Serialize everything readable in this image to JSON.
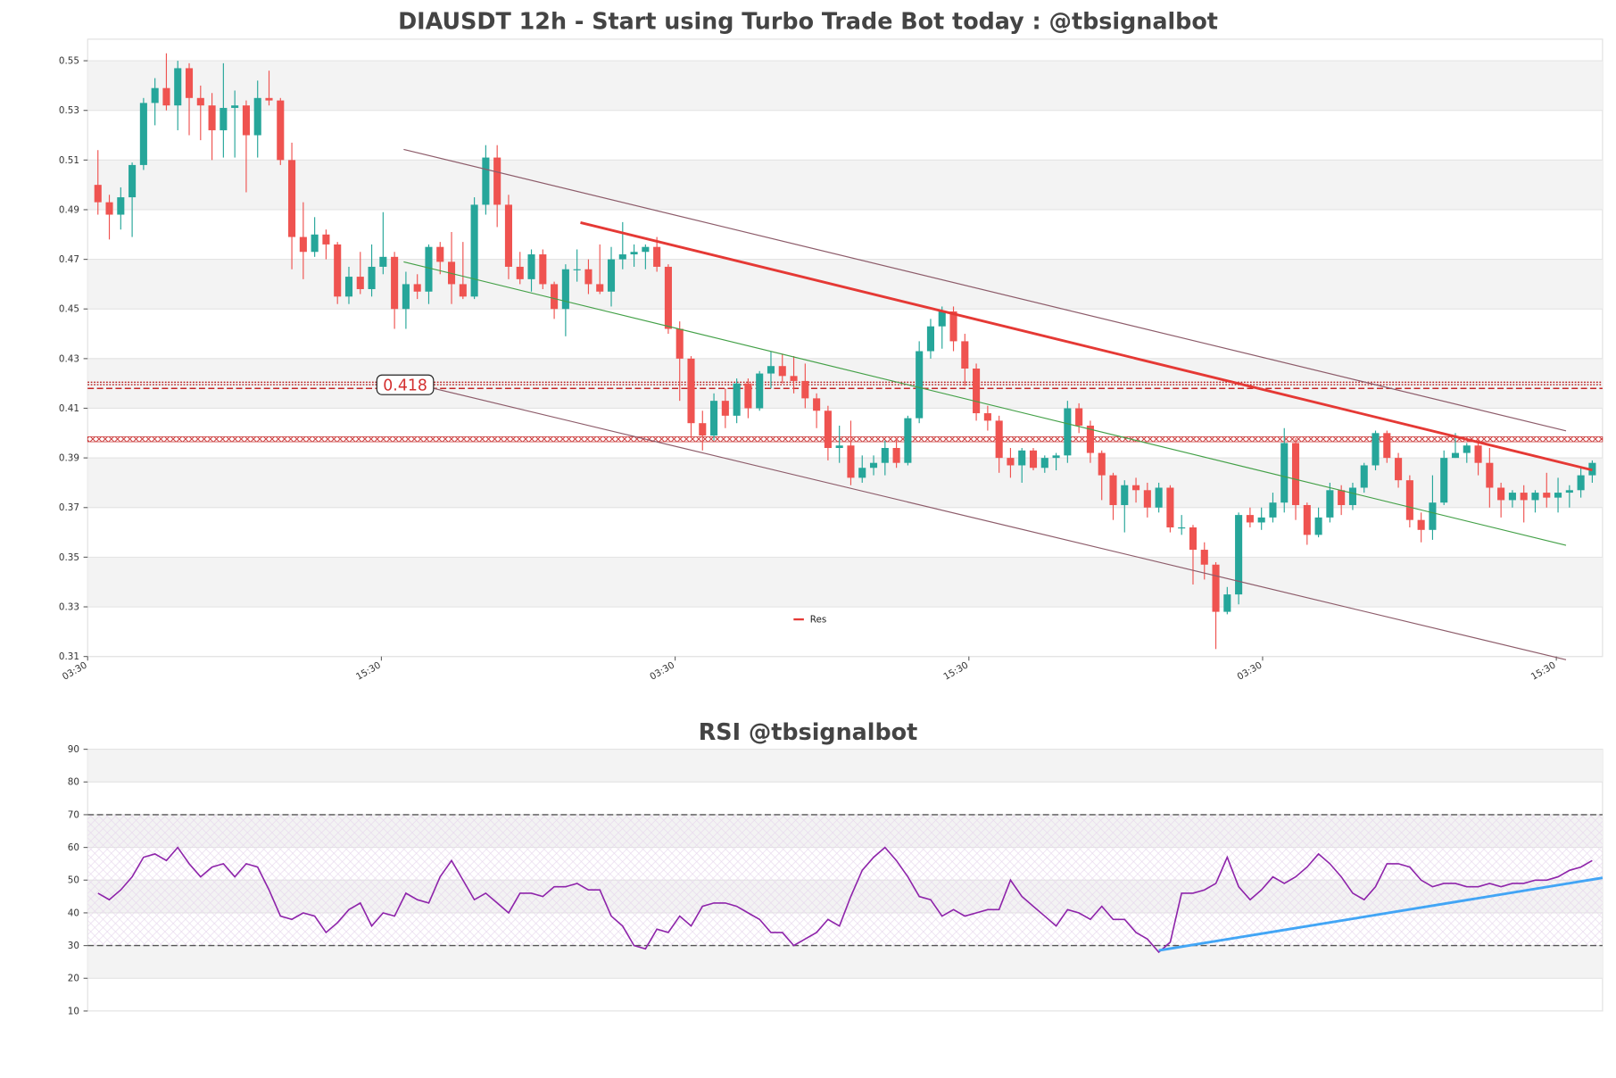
{
  "chart_data": [
    {
      "type": "candlestick",
      "title": "DIAUSDT 12h - Start using Turbo Trade Bot today : @tbsignalbot",
      "xlim": [
        -0.9,
        131.9
      ],
      "xticks": [
        {
          "value": -0.9,
          "label": "03:30"
        },
        {
          "value": 24.85,
          "label": "15:30"
        },
        {
          "value": 50.6,
          "label": "03:30"
        },
        {
          "value": 76.35,
          "label": "15:30"
        },
        {
          "value": 102.1,
          "label": "03:30"
        },
        {
          "value": 127.85,
          "label": "15:30"
        }
      ],
      "ylim": [
        0.31,
        0.5587
      ],
      "yticks": [
        0.31,
        0.33,
        0.35,
        0.37,
        0.39,
        0.41,
        0.43,
        0.45,
        0.47,
        0.49,
        0.51,
        0.53,
        0.55
      ],
      "grid": true,
      "up_color": "#26a69a",
      "down_color": "#ef5350",
      "ohlc": [
        [
          0.5,
          0.514,
          0.488,
          0.493
        ],
        [
          0.493,
          0.496,
          0.478,
          0.488
        ],
        [
          0.488,
          0.499,
          0.482,
          0.495
        ],
        [
          0.495,
          0.509,
          0.479,
          0.508
        ],
        [
          0.508,
          0.535,
          0.506,
          0.533
        ],
        [
          0.533,
          0.543,
          0.524,
          0.539
        ],
        [
          0.539,
          0.553,
          0.53,
          0.532
        ],
        [
          0.532,
          0.55,
          0.522,
          0.547
        ],
        [
          0.547,
          0.549,
          0.52,
          0.535
        ],
        [
          0.535,
          0.54,
          0.518,
          0.532
        ],
        [
          0.532,
          0.537,
          0.51,
          0.522
        ],
        [
          0.522,
          0.549,
          0.511,
          0.531
        ],
        [
          0.531,
          0.538,
          0.511,
          0.532
        ],
        [
          0.532,
          0.534,
          0.497,
          0.52
        ],
        [
          0.52,
          0.542,
          0.511,
          0.535
        ],
        [
          0.535,
          0.546,
          0.532,
          0.534
        ],
        [
          0.534,
          0.535,
          0.508,
          0.51
        ],
        [
          0.51,
          0.517,
          0.466,
          0.479
        ],
        [
          0.479,
          0.493,
          0.462,
          0.473
        ],
        [
          0.473,
          0.487,
          0.471,
          0.48
        ],
        [
          0.48,
          0.482,
          0.47,
          0.476
        ],
        [
          0.476,
          0.477,
          0.452,
          0.455
        ],
        [
          0.455,
          0.467,
          0.452,
          0.463
        ],
        [
          0.463,
          0.473,
          0.456,
          0.458
        ],
        [
          0.458,
          0.476,
          0.455,
          0.467
        ],
        [
          0.467,
          0.489,
          0.464,
          0.471
        ],
        [
          0.471,
          0.473,
          0.442,
          0.45
        ],
        [
          0.45,
          0.465,
          0.442,
          0.46
        ],
        [
          0.46,
          0.464,
          0.454,
          0.457
        ],
        [
          0.457,
          0.476,
          0.452,
          0.475
        ],
        [
          0.475,
          0.477,
          0.464,
          0.469
        ],
        [
          0.469,
          0.481,
          0.452,
          0.46
        ],
        [
          0.46,
          0.477,
          0.454,
          0.455
        ],
        [
          0.455,
          0.495,
          0.454,
          0.492
        ],
        [
          0.492,
          0.516,
          0.488,
          0.511
        ],
        [
          0.511,
          0.516,
          0.483,
          0.492
        ],
        [
          0.492,
          0.496,
          0.462,
          0.467
        ],
        [
          0.467,
          0.473,
          0.46,
          0.462
        ],
        [
          0.462,
          0.474,
          0.457,
          0.472
        ],
        [
          0.472,
          0.474,
          0.458,
          0.46
        ],
        [
          0.46,
          0.461,
          0.446,
          0.45
        ],
        [
          0.45,
          0.468,
          0.439,
          0.466
        ],
        [
          0.466,
          0.474,
          0.461,
          0.466
        ],
        [
          0.466,
          0.47,
          0.456,
          0.46
        ],
        [
          0.46,
          0.476,
          0.456,
          0.457
        ],
        [
          0.457,
          0.475,
          0.451,
          0.47
        ],
        [
          0.47,
          0.485,
          0.466,
          0.472
        ],
        [
          0.472,
          0.476,
          0.467,
          0.473
        ],
        [
          0.473,
          0.476,
          0.466,
          0.475
        ],
        [
          0.475,
          0.479,
          0.465,
          0.467
        ],
        [
          0.467,
          0.468,
          0.44,
          0.442
        ],
        [
          0.442,
          0.445,
          0.413,
          0.43
        ],
        [
          0.43,
          0.431,
          0.398,
          0.404
        ],
        [
          0.404,
          0.409,
          0.393,
          0.399
        ],
        [
          0.399,
          0.416,
          0.397,
          0.413
        ],
        [
          0.413,
          0.418,
          0.402,
          0.407
        ],
        [
          0.407,
          0.422,
          0.404,
          0.42
        ],
        [
          0.42,
          0.422,
          0.406,
          0.41
        ],
        [
          0.41,
          0.425,
          0.409,
          0.424
        ],
        [
          0.424,
          0.433,
          0.418,
          0.427
        ],
        [
          0.427,
          0.432,
          0.42,
          0.423
        ],
        [
          0.423,
          0.431,
          0.416,
          0.421
        ],
        [
          0.421,
          0.428,
          0.41,
          0.414
        ],
        [
          0.414,
          0.416,
          0.402,
          0.409
        ],
        [
          0.409,
          0.411,
          0.389,
          0.394
        ],
        [
          0.394,
          0.403,
          0.388,
          0.395
        ],
        [
          0.395,
          0.405,
          0.379,
          0.382
        ],
        [
          0.382,
          0.391,
          0.38,
          0.386
        ],
        [
          0.386,
          0.391,
          0.383,
          0.388
        ],
        [
          0.388,
          0.397,
          0.383,
          0.394
        ],
        [
          0.394,
          0.398,
          0.386,
          0.388
        ],
        [
          0.388,
          0.407,
          0.387,
          0.406
        ],
        [
          0.406,
          0.437,
          0.404,
          0.433
        ],
        [
          0.433,
          0.446,
          0.43,
          0.443
        ],
        [
          0.443,
          0.451,
          0.434,
          0.449
        ],
        [
          0.449,
          0.451,
          0.433,
          0.437
        ],
        [
          0.437,
          0.44,
          0.419,
          0.426
        ],
        [
          0.426,
          0.428,
          0.405,
          0.408
        ],
        [
          0.408,
          0.411,
          0.401,
          0.405
        ],
        [
          0.405,
          0.407,
          0.384,
          0.39
        ],
        [
          0.39,
          0.394,
          0.382,
          0.387
        ],
        [
          0.387,
          0.394,
          0.38,
          0.393
        ],
        [
          0.393,
          0.394,
          0.385,
          0.386
        ],
        [
          0.386,
          0.391,
          0.384,
          0.39
        ],
        [
          0.39,
          0.392,
          0.385,
          0.391
        ],
        [
          0.391,
          0.413,
          0.388,
          0.41
        ],
        [
          0.41,
          0.412,
          0.4,
          0.403
        ],
        [
          0.403,
          0.405,
          0.388,
          0.392
        ],
        [
          0.392,
          0.393,
          0.373,
          0.383
        ],
        [
          0.383,
          0.384,
          0.365,
          0.371
        ],
        [
          0.371,
          0.381,
          0.36,
          0.379
        ],
        [
          0.379,
          0.382,
          0.372,
          0.377
        ],
        [
          0.377,
          0.38,
          0.366,
          0.37
        ],
        [
          0.37,
          0.38,
          0.368,
          0.378
        ],
        [
          0.378,
          0.379,
          0.36,
          0.362
        ],
        [
          0.362,
          0.367,
          0.359,
          0.362
        ],
        [
          0.362,
          0.363,
          0.339,
          0.353
        ],
        [
          0.353,
          0.356,
          0.341,
          0.347
        ],
        [
          0.347,
          0.348,
          0.313,
          0.328
        ],
        [
          0.328,
          0.338,
          0.327,
          0.335
        ],
        [
          0.335,
          0.368,
          0.331,
          0.367
        ],
        [
          0.367,
          0.37,
          0.362,
          0.364
        ],
        [
          0.364,
          0.37,
          0.361,
          0.366
        ],
        [
          0.366,
          0.376,
          0.364,
          0.372
        ],
        [
          0.372,
          0.402,
          0.368,
          0.396
        ],
        [
          0.396,
          0.398,
          0.365,
          0.371
        ],
        [
          0.371,
          0.372,
          0.355,
          0.359
        ],
        [
          0.359,
          0.37,
          0.358,
          0.366
        ],
        [
          0.366,
          0.38,
          0.364,
          0.377
        ],
        [
          0.377,
          0.379,
          0.367,
          0.371
        ],
        [
          0.371,
          0.38,
          0.369,
          0.378
        ],
        [
          0.378,
          0.388,
          0.376,
          0.387
        ],
        [
          0.387,
          0.401,
          0.385,
          0.4
        ],
        [
          0.4,
          0.401,
          0.388,
          0.39
        ],
        [
          0.39,
          0.392,
          0.378,
          0.381
        ],
        [
          0.381,
          0.383,
          0.362,
          0.365
        ],
        [
          0.365,
          0.368,
          0.356,
          0.361
        ],
        [
          0.361,
          0.383,
          0.357,
          0.372
        ],
        [
          0.372,
          0.393,
          0.371,
          0.39
        ],
        [
          0.39,
          0.4,
          0.39,
          0.392
        ],
        [
          0.392,
          0.396,
          0.388,
          0.395
        ],
        [
          0.395,
          0.398,
          0.383,
          0.388
        ],
        [
          0.388,
          0.394,
          0.37,
          0.378
        ],
        [
          0.378,
          0.38,
          0.366,
          0.373
        ],
        [
          0.373,
          0.377,
          0.37,
          0.376
        ],
        [
          0.376,
          0.379,
          0.364,
          0.373
        ],
        [
          0.373,
          0.377,
          0.368,
          0.376
        ],
        [
          0.376,
          0.384,
          0.37,
          0.374
        ],
        [
          0.374,
          0.382,
          0.368,
          0.376
        ],
        [
          0.376,
          0.379,
          0.37,
          0.377
        ],
        [
          0.377,
          0.386,
          0.374,
          0.383
        ],
        [
          0.383,
          0.389,
          0.38,
          0.388
        ]
      ],
      "overlays": [
        {
          "x": [
            26.8,
            128.7
          ],
          "y": [
            0.5143,
            0.4009
          ],
          "color": "#8d5c6a",
          "width": 1
        },
        {
          "x": [
            26.8,
            128.7
          ],
          "y": [
            0.4209,
            0.3087
          ],
          "color": "#8d5c6a",
          "width": 1
        },
        {
          "x": [
            26.8,
            128.7
          ],
          "y": [
            0.469,
            0.3548
          ],
          "color": "#43a047",
          "width": 1
        },
        {
          "name": "Res",
          "x": [
            42.3,
            131.0
          ],
          "y": [
            0.4848,
            0.3851
          ],
          "color": "#e53935",
          "width": 2.5
        }
      ],
      "hlines": [
        {
          "y": 0.4205,
          "color": "#b71c1c",
          "style": "dotted"
        },
        {
          "y": 0.4195,
          "color": "#b71c1c",
          "style": "dotted"
        },
        {
          "y": 0.418,
          "color": "#c62828",
          "style": "dashed"
        }
      ],
      "band": {
        "y": [
          0.3965,
          0.3985
        ],
        "color": "#c62828"
      },
      "level_label": "0.418",
      "legend": "lower center"
    },
    {
      "type": "line",
      "title": "RSI @tbsignalbot",
      "xlim": [
        -0.9,
        131.9
      ],
      "ylim": [
        10,
        90
      ],
      "yticks": [
        10,
        20,
        30,
        40,
        50,
        60,
        70,
        80,
        90
      ],
      "grid": true,
      "color": "#8e24aa",
      "values": [
        46,
        44,
        47,
        51,
        57,
        58,
        56,
        60,
        55,
        51,
        54,
        55,
        51,
        55,
        54,
        47,
        39,
        38,
        40,
        39,
        34,
        37,
        41,
        43,
        36,
        40,
        39,
        46,
        44,
        43,
        51,
        56,
        50,
        44,
        46,
        43,
        40,
        46,
        46,
        45,
        48,
        48,
        49,
        47,
        47,
        39,
        36,
        30,
        29,
        35,
        34,
        39,
        36,
        42,
        43,
        43,
        42,
        40,
        38,
        34,
        34,
        30,
        32,
        34,
        38,
        36,
        45,
        53,
        57,
        60,
        56,
        51,
        45,
        44,
        39,
        41,
        39,
        40,
        41,
        41,
        50,
        45,
        42,
        39,
        36,
        41,
        40,
        38,
        42,
        38,
        38,
        34,
        32,
        28,
        31,
        46,
        46,
        47,
        49,
        57,
        48,
        44,
        47,
        51,
        49,
        51,
        54,
        58,
        55,
        51,
        46,
        44,
        48,
        55,
        55,
        54,
        50,
        48,
        49,
        49,
        48,
        48,
        49,
        48,
        49,
        49,
        50,
        50,
        51,
        53,
        54,
        56
      ],
      "hlines": [
        {
          "y": 30,
          "color": "#555555",
          "style": "dashed"
        },
        {
          "y": 70,
          "color": "#555555",
          "style": "dashed"
        }
      ],
      "overlays": [
        {
          "x": [
            93,
            131.9
          ],
          "y": [
            28.5,
            50.7
          ],
          "color": "#42a5f5",
          "width": 2.5
        }
      ]
    }
  ]
}
